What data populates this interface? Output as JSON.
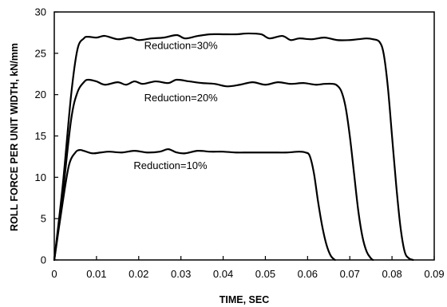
{
  "chart_data": {
    "type": "line",
    "title": "",
    "xlabel": "TIME, SEC",
    "ylabel": "ROLL FORCE PER UNIT WIDTH, kN/mm",
    "xlim": [
      0,
      0.09
    ],
    "ylim": [
      0,
      30
    ],
    "xticks": [
      "0",
      "0.01",
      "0.02",
      "0.03",
      "0.04",
      "0.05",
      "0.06",
      "0.07",
      "0.08",
      "0.09"
    ],
    "yticks": [
      "0",
      "5",
      "10",
      "15",
      "20",
      "25",
      "30"
    ],
    "grid": false,
    "series": [
      {
        "name": "Reduction=30%",
        "x": [
          0,
          0.002,
          0.004,
          0.0055,
          0.007,
          0.008,
          0.01,
          0.012,
          0.015,
          0.018,
          0.02,
          0.023,
          0.026,
          0.029,
          0.031,
          0.034,
          0.037,
          0.04,
          0.043,
          0.046,
          0.049,
          0.051,
          0.054,
          0.056,
          0.058,
          0.061,
          0.064,
          0.067,
          0.07,
          0.072,
          0.074,
          0.0755,
          0.077,
          0.078,
          0.079,
          0.08,
          0.081,
          0.082,
          0.083,
          0.084,
          0.085
        ],
        "y": [
          0,
          9,
          20,
          25.5,
          26.8,
          27,
          26.9,
          27.1,
          26.7,
          26.9,
          26.6,
          26.8,
          26.9,
          27.2,
          26.8,
          27.1,
          27.3,
          27.3,
          27.3,
          27.4,
          27.3,
          26.8,
          27.1,
          26.6,
          26.8,
          26.7,
          26.9,
          26.6,
          26.6,
          26.7,
          26.8,
          26.7,
          26.4,
          25,
          21,
          15,
          9,
          4,
          1,
          0.2,
          0
        ]
      },
      {
        "name": "Reduction=20%",
        "x": [
          0,
          0.002,
          0.004,
          0.0055,
          0.007,
          0.008,
          0.01,
          0.012,
          0.015,
          0.017,
          0.019,
          0.021,
          0.024,
          0.027,
          0.029,
          0.032,
          0.035,
          0.038,
          0.041,
          0.044,
          0.047,
          0.05,
          0.053,
          0.056,
          0.059,
          0.062,
          0.064,
          0.066,
          0.067,
          0.068,
          0.069,
          0.07,
          0.071,
          0.072,
          0.073,
          0.074,
          0.075,
          0.0755
        ],
        "y": [
          0,
          8,
          17,
          20.3,
          21.5,
          21.8,
          21.6,
          21.2,
          21.5,
          21.2,
          21.6,
          21.3,
          21.6,
          21.4,
          21.8,
          21.6,
          21.4,
          21.3,
          21,
          21.2,
          21.5,
          21.2,
          21.5,
          21.3,
          21.4,
          21.2,
          21.3,
          21.3,
          21.1,
          20.4,
          18.5,
          15,
          10.5,
          6,
          2.8,
          1,
          0.2,
          0
        ]
      },
      {
        "name": "Reduction=10%",
        "x": [
          0,
          0.002,
          0.0035,
          0.005,
          0.006,
          0.007,
          0.009,
          0.011,
          0.013,
          0.016,
          0.019,
          0.022,
          0.025,
          0.027,
          0.029,
          0.031,
          0.034,
          0.037,
          0.04,
          0.043,
          0.046,
          0.049,
          0.052,
          0.055,
          0.058,
          0.0595,
          0.0605,
          0.0615,
          0.0625,
          0.0635,
          0.0645,
          0.0655,
          0.0665
        ],
        "y": [
          0,
          7,
          11.5,
          13,
          13.3,
          13.2,
          12.9,
          13,
          13.1,
          13,
          13.2,
          13,
          13.1,
          13.4,
          13,
          12.9,
          13.2,
          13.1,
          13.1,
          13,
          13,
          13,
          13,
          13,
          13.1,
          13,
          12.6,
          10.5,
          7,
          4,
          1.8,
          0.5,
          0
        ]
      }
    ],
    "annotations": [
      {
        "text": "Reduction=30%",
        "x": 0.03,
        "y": 25.5
      },
      {
        "text": "Reduction=20%",
        "x": 0.03,
        "y": 19.2
      },
      {
        "text": "Reduction=10%",
        "x": 0.0275,
        "y": 11.0
      }
    ]
  }
}
